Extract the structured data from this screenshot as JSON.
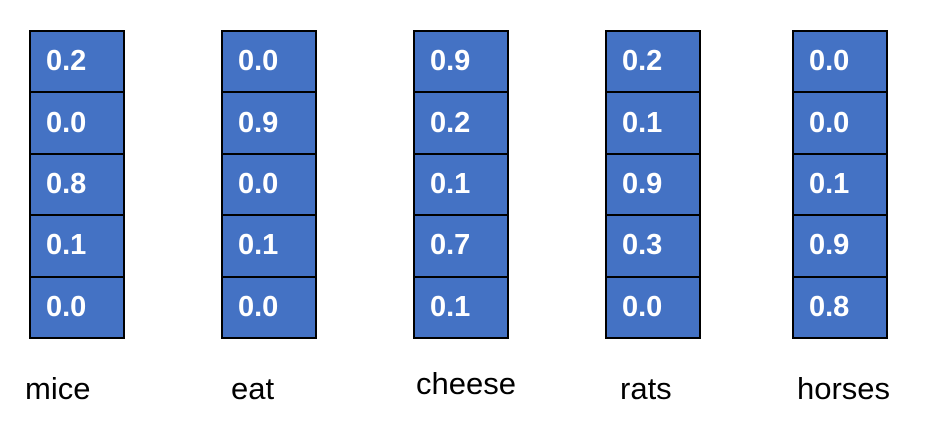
{
  "words": [
    {
      "label": "mice",
      "values": [
        "0.2",
        "0.0",
        "0.8",
        "0.1",
        "0.0"
      ]
    },
    {
      "label": "eat",
      "values": [
        "0.0",
        "0.9",
        "0.0",
        "0.1",
        "0.0"
      ]
    },
    {
      "label": "cheese",
      "values": [
        "0.9",
        "0.2",
        "0.1",
        "0.7",
        "0.1"
      ]
    },
    {
      "label": "rats",
      "values": [
        "0.2",
        "0.1",
        "0.9",
        "0.3",
        "0.0"
      ]
    },
    {
      "label": "horses",
      "values": [
        "0.0",
        "0.0",
        "0.1",
        "0.9",
        "0.8"
      ]
    }
  ],
  "colors": {
    "cell_fill": "#4472c4",
    "cell_text": "#ffffff",
    "border": "#000000"
  }
}
